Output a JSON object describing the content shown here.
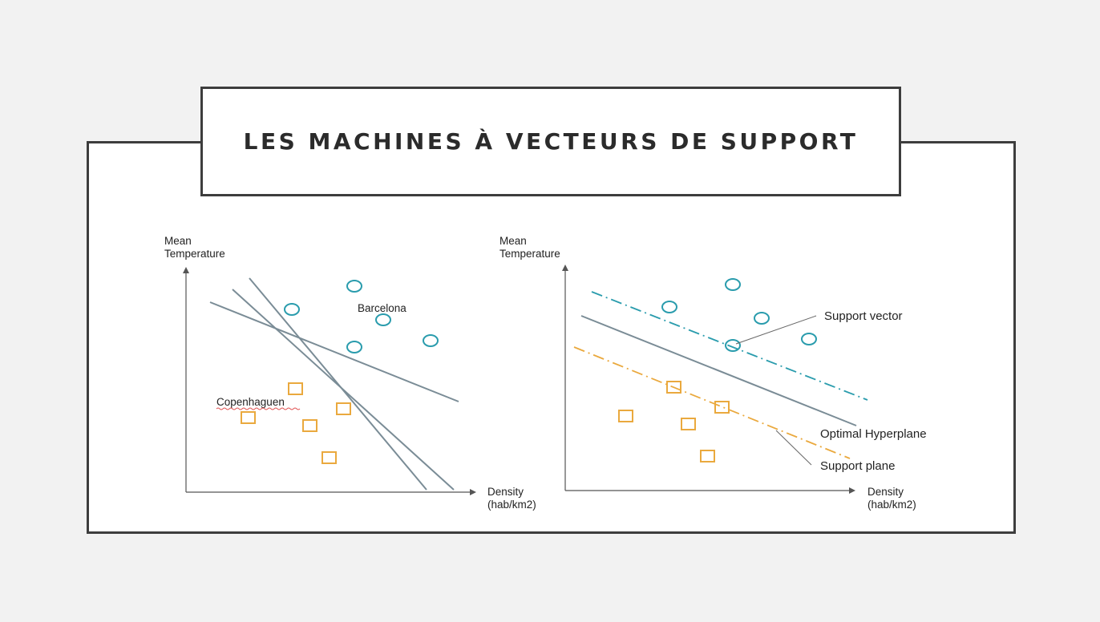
{
  "slide": {
    "title": "LES MACHINES À VECTEURS DE SUPPORT"
  },
  "left_diagram": {
    "y_axis_label": [
      "Mean",
      "Temperature"
    ],
    "x_axis_label": [
      "Density",
      "(hab/km2)"
    ],
    "class_a_label": "Barcelona",
    "class_b_label": "Copenhaguen"
  },
  "right_diagram": {
    "y_axis_label": [
      "Mean",
      "Temperature"
    ],
    "x_axis_label": [
      "Density",
      "(hab/km2)"
    ],
    "annotations": {
      "support_vector": "Support vector",
      "optimal_hyperplane": "Optimal Hyperplane",
      "support_plane": "Support plane"
    }
  },
  "colors": {
    "circle_class": "#2a9cad",
    "square_class": "#eaa93e",
    "separator_line": "#7a8c96",
    "axis": "#555555",
    "frame_border": "#3d3d3d"
  },
  "icons": {
    "circle_marker": "circle-marker-icon",
    "square_marker": "square-marker-icon"
  }
}
